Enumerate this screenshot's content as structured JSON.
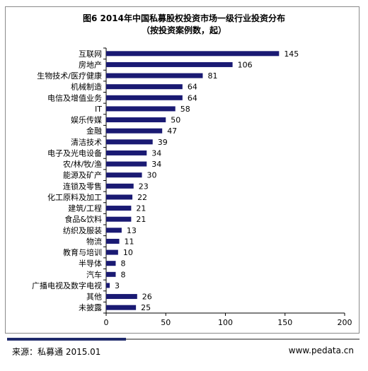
{
  "chart_data": {
    "type": "bar",
    "orientation": "horizontal",
    "title": "图6 2014年中国私募股权投资市场一级行业投资分布",
    "subtitle": "（按投资案例数，起）",
    "categories": [
      "互联网",
      "房地产",
      "生物技术/医疗健康",
      "机械制造",
      "电信及增值业务",
      "IT",
      "娱乐传媒",
      "金融",
      "清洁技术",
      "电子及光电设备",
      "农/林/牧/渔",
      "能源及矿产",
      "连锁及零售",
      "化工原料及加工",
      "建筑/工程",
      "食品&饮料",
      "纺织及服装",
      "物流",
      "教育与培训",
      "半导体",
      "汽车",
      "广播电视及数字电视",
      "其他",
      "未披露"
    ],
    "values": [
      145,
      106,
      81,
      64,
      64,
      58,
      50,
      47,
      39,
      34,
      34,
      30,
      23,
      22,
      21,
      21,
      13,
      11,
      10,
      8,
      8,
      3,
      26,
      25
    ],
    "xlim": [
      0,
      200
    ],
    "xticks": [
      0,
      50,
      100,
      150,
      200
    ],
    "bar_color": "#1a1a73",
    "grid": false,
    "legend": "none"
  },
  "footer": {
    "source": "来源：私募通  2015.01",
    "site": "www.pedata.cn"
  }
}
